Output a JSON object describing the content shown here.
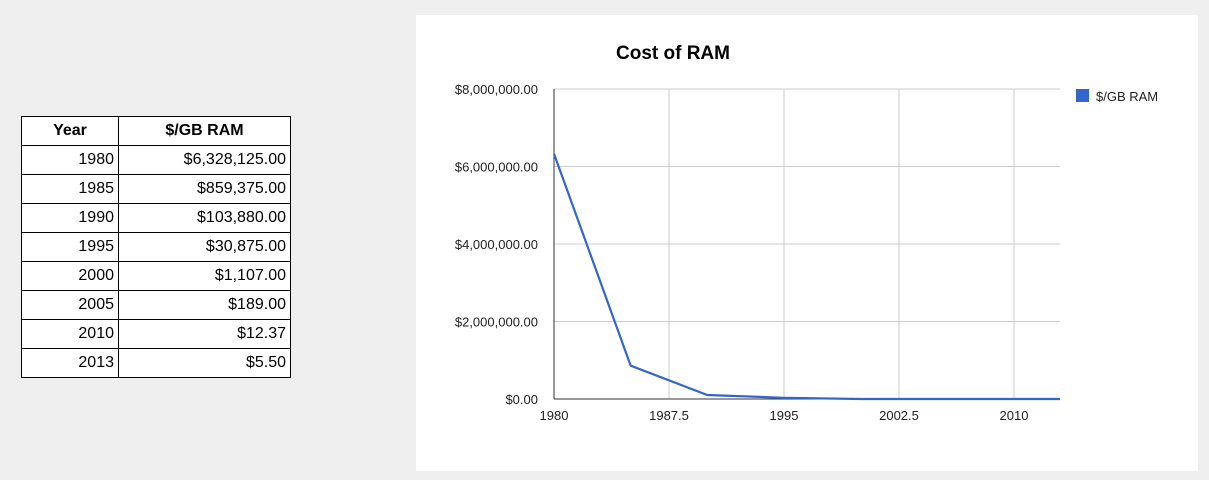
{
  "table": {
    "headers": [
      "Year",
      "$/GB RAM"
    ],
    "rows": [
      [
        "1980",
        "$6,328,125.00"
      ],
      [
        "1985",
        "$859,375.00"
      ],
      [
        "1990",
        "$103,880.00"
      ],
      [
        "1995",
        "$30,875.00"
      ],
      [
        "2000",
        "$1,107.00"
      ],
      [
        "2005",
        "$189.00"
      ],
      [
        "2010",
        "$12.37"
      ],
      [
        "2013",
        "$5.50"
      ]
    ]
  },
  "chart_data": {
    "type": "line",
    "title": "Cost of RAM",
    "xlabel": "",
    "ylabel": "",
    "xlim": [
      1980,
      2013
    ],
    "ylim": [
      0,
      8000000
    ],
    "x_ticks": [
      "1980",
      "1987.5",
      "1995",
      "2002.5",
      "2010"
    ],
    "x_tick_values": [
      1980,
      1987.5,
      1995,
      2002.5,
      2010
    ],
    "y_ticks": [
      "$0.00",
      "$2,000,000.00",
      "$4,000,000.00",
      "$6,000,000.00",
      "$8,000,000.00"
    ],
    "y_tick_values": [
      0,
      2000000,
      4000000,
      6000000,
      8000000
    ],
    "grid": true,
    "legend_position": "right",
    "series": [
      {
        "name": "$/GB RAM",
        "color": "#3366cc",
        "x": [
          1980,
          1985,
          1990,
          1995,
          2000,
          2005,
          2010,
          2013
        ],
        "y": [
          6328125,
          859375,
          103880,
          30875,
          1107,
          189,
          12.37,
          5.5
        ]
      }
    ]
  }
}
